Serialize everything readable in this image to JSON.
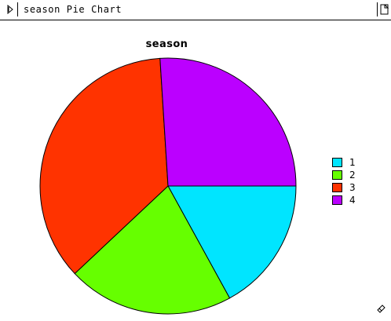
{
  "window": {
    "title": "season Pie Chart"
  },
  "icons": {
    "collapse": "triangle-right-icon",
    "document": "document-icon",
    "resize": "resize-handle-icon"
  },
  "chart_data": {
    "type": "pie",
    "title": "season",
    "categories": [
      "1",
      "2",
      "3",
      "4"
    ],
    "values": [
      17,
      21,
      36,
      26
    ],
    "colors": [
      "#00e5ff",
      "#66ff00",
      "#ff3300",
      "#bb00ff"
    ],
    "start_angle_deg": 0,
    "direction": "clockwise",
    "legend_position": "right"
  }
}
